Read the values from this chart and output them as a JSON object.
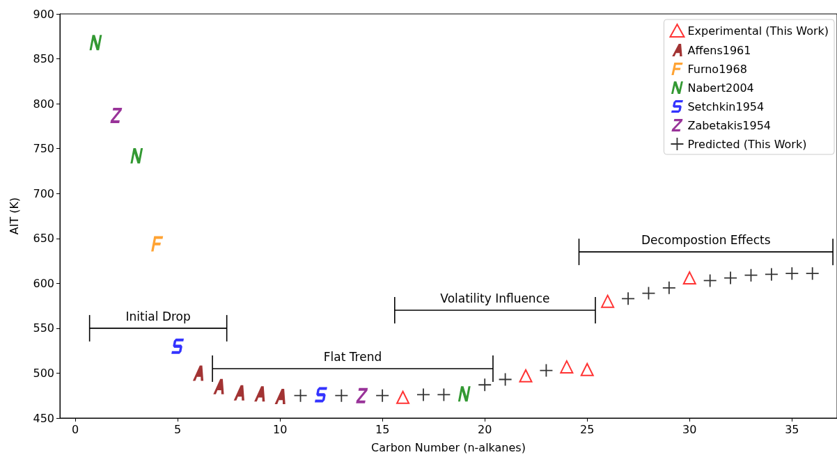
{
  "chart_data": {
    "type": "scatter",
    "xlabel": "Carbon Number (n-alkanes)",
    "ylabel": "AIT (K)",
    "xlim": [
      -0.75,
      37.2
    ],
    "xticks": [
      0,
      5,
      10,
      15,
      20,
      25,
      30,
      35
    ],
    "ylim": [
      450,
      900
    ],
    "yticks": [
      450,
      500,
      550,
      600,
      650,
      700,
      750,
      800,
      850,
      900
    ],
    "grid": false,
    "legend": "top right",
    "series": [
      {
        "name": "Experimental (This Work)",
        "color": "#ff0000",
        "marker": "triangle",
        "x": [
          16,
          22,
          24,
          25,
          26,
          30
        ],
        "values": [
          473,
          497,
          507,
          504,
          580,
          606
        ]
      },
      {
        "name": "Affens1961",
        "color": "#8b0000",
        "x": [
          6,
          7,
          8,
          9,
          10
        ],
        "values": [
          500,
          485,
          478,
          477,
          474
        ]
      },
      {
        "name": "Furno1968",
        "color": "#ff8c00",
        "x": [
          4
        ],
        "values": [
          644
        ]
      },
      {
        "name": "Nabert2004",
        "color": "#008000",
        "x": [
          1,
          3,
          19
        ],
        "values": [
          868,
          742,
          477
        ]
      },
      {
        "name": "Setchkin1954",
        "color": "#0000ff",
        "x": [
          5,
          12
        ],
        "values": [
          530,
          476
        ]
      },
      {
        "name": "Zabetakis1954",
        "color": "#800080",
        "x": [
          2,
          14
        ],
        "values": [
          787,
          475
        ]
      },
      {
        "name": "Predicted (This Work)",
        "color": "#000000",
        "marker": "cross",
        "x": [
          11,
          13,
          15,
          17,
          18,
          20,
          21,
          23,
          27,
          28,
          29,
          31,
          32,
          33,
          34,
          35,
          36
        ],
        "values": [
          475,
          475,
          475,
          476,
          476,
          487,
          493,
          503,
          583,
          589,
          595,
          603,
          606,
          609,
          610,
          611,
          611
        ]
      }
    ],
    "annotations": [
      "Initial Drop",
      "Flat Trend",
      "Volatility Influence",
      "Decompostion Effects"
    ]
  }
}
